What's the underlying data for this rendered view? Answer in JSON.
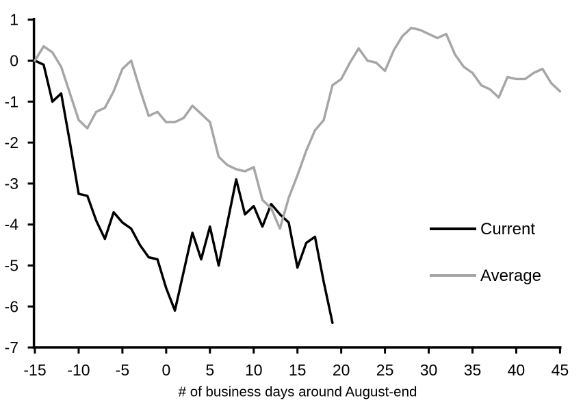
{
  "chart_data": {
    "type": "line",
    "title": "",
    "xlabel": "# of business days around August-end",
    "ylabel": "",
    "xlim": [
      -15,
      45
    ],
    "ylim": [
      -7,
      1
    ],
    "grid": false,
    "legend_position": "right-middle",
    "x_ticks": [
      -15,
      -10,
      -5,
      0,
      5,
      10,
      15,
      20,
      25,
      30,
      35,
      40,
      45
    ],
    "y_ticks": [
      1,
      0,
      -1,
      -2,
      -3,
      -4,
      -5,
      -6,
      -7
    ],
    "series": [
      {
        "name": "Current",
        "color": "#000000",
        "x_start": -15,
        "x_step": 1,
        "values": [
          0.0,
          -0.1,
          -1.0,
          -0.8,
          -2.0,
          -3.25,
          -3.3,
          -3.9,
          -4.35,
          -3.7,
          -3.95,
          -4.1,
          -4.5,
          -4.8,
          -4.85,
          -5.55,
          -6.1,
          -5.15,
          -4.2,
          -4.85,
          -4.05,
          -5.0,
          -3.95,
          -2.9,
          -3.75,
          -3.55,
          -4.05,
          -3.5,
          -3.75,
          -3.95,
          -5.05,
          -4.45,
          -4.3,
          -5.4,
          -6.4
        ]
      },
      {
        "name": "Average",
        "color": "#a6a6a6",
        "x_start": -15,
        "x_step": 1,
        "values": [
          0.0,
          0.35,
          0.2,
          -0.15,
          -0.8,
          -1.45,
          -1.65,
          -1.25,
          -1.15,
          -0.75,
          -0.2,
          0.0,
          -0.7,
          -1.35,
          -1.25,
          -1.5,
          -1.5,
          -1.4,
          -1.1,
          -1.3,
          -1.5,
          -2.35,
          -2.55,
          -2.65,
          -2.7,
          -2.6,
          -3.4,
          -3.6,
          -4.1,
          -3.35,
          -2.8,
          -2.2,
          -1.7,
          -1.45,
          -0.6,
          -0.45,
          -0.05,
          0.3,
          0.0,
          -0.05,
          -0.25,
          0.25,
          0.6,
          0.8,
          0.75,
          0.65,
          0.55,
          0.65,
          0.15,
          -0.15,
          -0.3,
          -0.6,
          -0.7,
          -0.9,
          -0.4,
          -0.45,
          -0.45,
          -0.3,
          -0.2,
          -0.55,
          -0.75
        ]
      }
    ]
  },
  "legend": {
    "current_label": "Current",
    "average_label": "Average"
  }
}
